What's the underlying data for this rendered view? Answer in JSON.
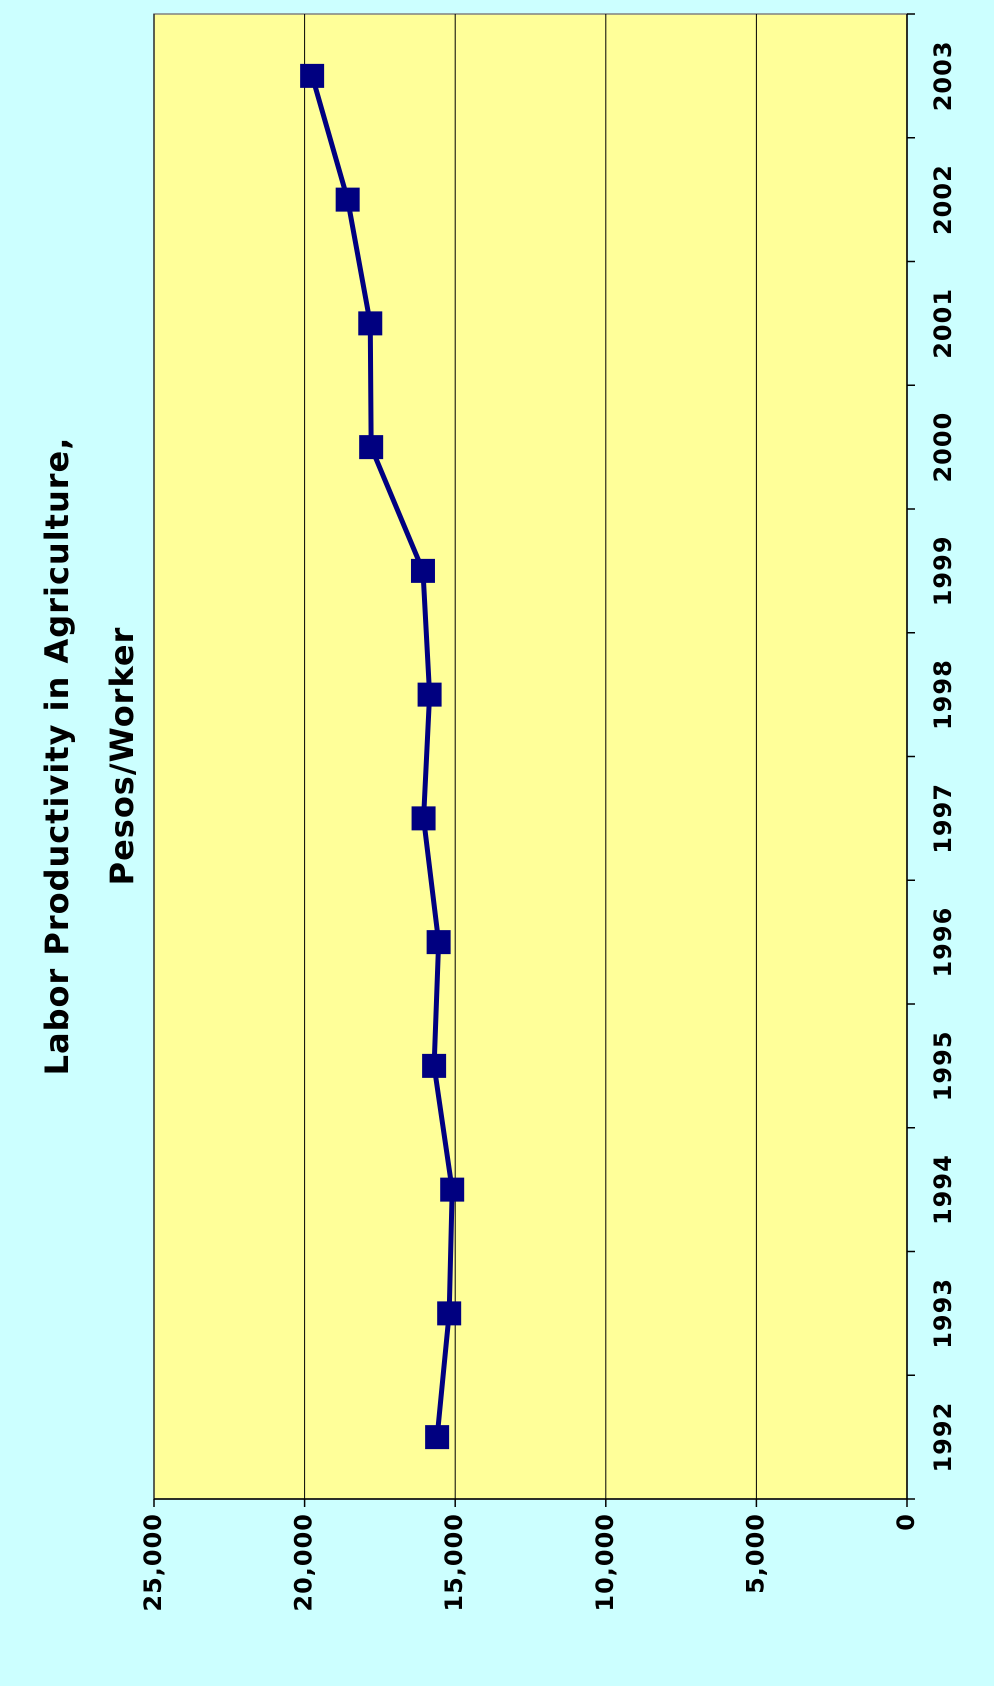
{
  "chart_data": {
    "type": "line",
    "title": [
      "Labor Productivity in Agriculture,",
      "Pesos/Worker"
    ],
    "categories": [
      "1992",
      "1993",
      "1994",
      "1995",
      "1996",
      "1997",
      "1998",
      "1999",
      "2000",
      "2001",
      "2002",
      "2003"
    ],
    "series": [
      {
        "name": "Labor Productivity",
        "color": "#000080",
        "values": [
          15600,
          15200,
          15100,
          15700,
          15550,
          16050,
          15850,
          16070,
          17790,
          17820,
          18570,
          19750
        ]
      }
    ],
    "ylim": [
      0,
      25000
    ],
    "yticks": [
      0,
      {
        "value": 5000,
        "label": "5,000"
      },
      {
        "value": 10000,
        "label": "10,000"
      },
      {
        "value": 15000,
        "label": "15,000"
      },
      {
        "value": 20000,
        "label": "20,000"
      },
      {
        "value": 25000,
        "label": "25,000"
      }
    ],
    "grid": true,
    "background": "#ccffff",
    "plot_background": "#ffff99"
  }
}
